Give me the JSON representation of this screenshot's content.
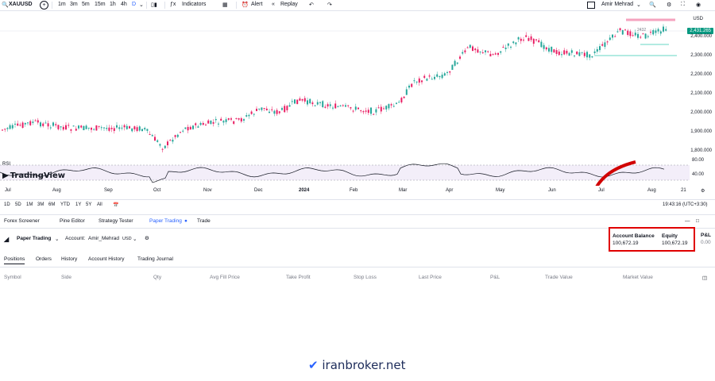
{
  "toolbar": {
    "symbol": "XAUUSD",
    "timeframes": [
      "1m",
      "3m",
      "5m",
      "15m",
      "1h",
      "4h",
      "D"
    ],
    "active_timeframe": "D",
    "indicators_label": "Indicators",
    "alert_label": "Alert",
    "replay_label": "Replay",
    "user_name": "Amir Mehrad"
  },
  "chart": {
    "currency": "USD",
    "current_price": "2,431.265",
    "overlay_price": "2432",
    "price_ticks": [
      "2,400.000",
      "2,300.000",
      "2,200.000",
      "2,100.000",
      "2,000.000",
      "1,900.000",
      "1,800.000"
    ],
    "rsi_label": "RSI",
    "rsi_ticks": [
      "80.00",
      "40.00"
    ],
    "months": [
      "Jul",
      "Aug",
      "Sep",
      "Oct",
      "Nov",
      "Dec",
      "2024",
      "Feb",
      "Mar",
      "Apr",
      "May",
      "Jun",
      "Jul",
      "Aug",
      "21"
    ],
    "watermark": "TradingView"
  },
  "range_bar": {
    "ranges": [
      "1D",
      "5D",
      "1M",
      "3M",
      "6M",
      "YTD",
      "1Y",
      "5Y",
      "All"
    ],
    "clock": "19:43:16 (UTC+3:30)"
  },
  "bottom_tabs": [
    "Forex Screener",
    "Pine Editor",
    "Strategy Tester",
    "Paper Trading",
    "Trade"
  ],
  "active_bottom_tab": "Paper Trading",
  "panel": {
    "broker": "Paper Trading",
    "account_prefix": "Account:",
    "account_name": "Amir_Mehrad",
    "account_currency": "USD",
    "account_balance_label": "Account Balance",
    "account_balance_value": "100,672.19",
    "equity_label": "Equity",
    "equity_value": "100,672.19",
    "pnl_label": "P&L",
    "pnl_value": "0.00",
    "sub_tabs": [
      "Positions",
      "Orders",
      "History",
      "Account History",
      "Trading Journal"
    ],
    "columns": [
      "Symbol",
      "Side",
      "Qty",
      "Avg Fill Price",
      "Take Profit",
      "Stop Loss",
      "Last Price",
      "P&L",
      "Trade Value",
      "Market Value"
    ]
  },
  "brand": "iranbroker.net",
  "colors": {
    "up": "#089981",
    "up_candle": "#26a69a",
    "down_candle": "#e91e63",
    "accent": "#2962ff",
    "highlight_red": "#e00000"
  }
}
